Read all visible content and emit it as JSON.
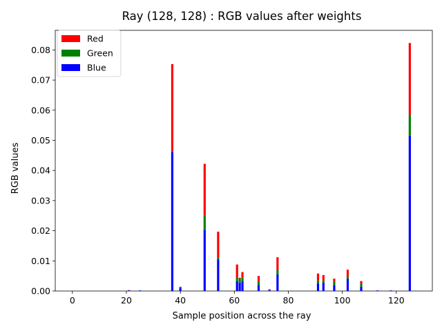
{
  "chart_data": {
    "type": "bar",
    "stacked": true,
    "title": "Ray (128, 128) : RGB values after weights",
    "xlabel": "Sample position across the ray",
    "ylabel": "RGB values",
    "xlim": [
      -6.35,
      133.35
    ],
    "ylim": [
      0,
      0.0865
    ],
    "xticks": [
      0,
      20,
      40,
      60,
      80,
      100,
      120
    ],
    "xtick_labels": [
      "0",
      "20",
      "40",
      "60",
      "80",
      "100",
      "120"
    ],
    "yticks": [
      0,
      0.01,
      0.02,
      0.03,
      0.04,
      0.05,
      0.06,
      0.07,
      0.08
    ],
    "ytick_labels": [
      "0.00",
      "0.01",
      "0.02",
      "0.03",
      "0.04",
      "0.05",
      "0.06",
      "0.07",
      "0.08"
    ],
    "grid": false,
    "legend_position": "upper-left",
    "x": [
      21,
      25,
      37,
      40,
      49,
      54,
      61,
      62,
      63,
      69,
      73,
      76,
      91,
      93,
      97,
      102,
      107,
      113,
      118,
      125
    ],
    "series": [
      {
        "name": "Blue",
        "color": "#0000ff",
        "values": [
          0.0002,
          0.0002,
          0.0461,
          0.001,
          0.0203,
          0.0105,
          0.0033,
          0.0028,
          0.0032,
          0.002,
          0.0003,
          0.0055,
          0.0025,
          0.0028,
          0.002,
          0.004,
          0.0014,
          0.0002,
          0.0002,
          0.0515
        ]
      },
      {
        "name": "Green",
        "color": "#008000",
        "values": [
          0.0,
          0.0,
          0.0002,
          0.0003,
          0.0047,
          0.0007,
          0.0013,
          0.0013,
          0.0012,
          0.001,
          0.0001,
          0.0015,
          0.001,
          0.0007,
          0.001,
          0.0008,
          0.0009,
          0.0,
          0.0,
          0.007
        ]
      },
      {
        "name": "Red",
        "color": "#ff0000",
        "values": [
          0.0001,
          0.0,
          0.029,
          0.0001,
          0.0172,
          0.0085,
          0.0042,
          0.0003,
          0.0019,
          0.002,
          0.0002,
          0.0042,
          0.0023,
          0.0018,
          0.0011,
          0.0023,
          0.001,
          0.0,
          0.0,
          0.0238
        ]
      }
    ]
  }
}
